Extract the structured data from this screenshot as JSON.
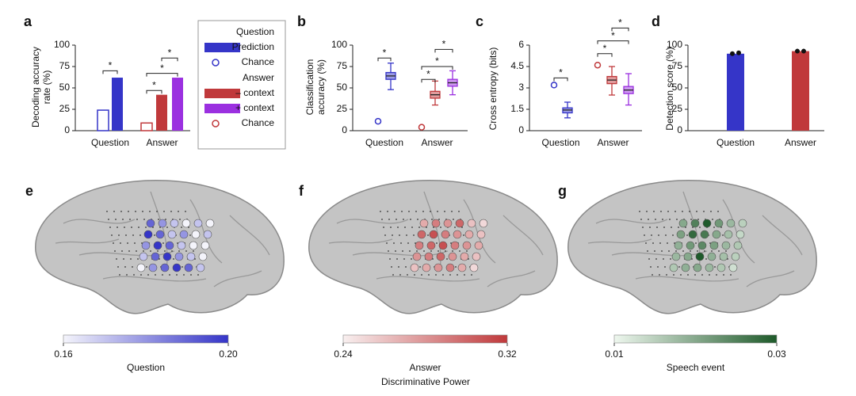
{
  "chart_data": [
    {
      "type": "bar",
      "label": "a",
      "ylabel": "Decoding accuracy rate (%)",
      "ylim": [
        0,
        100
      ],
      "yticks": [
        0,
        25,
        50,
        75,
        100
      ],
      "groups": [
        {
          "name": "Question",
          "series": [
            {
              "name": "Prediction",
              "color": "#3535c8",
              "filled": true,
              "value": 62
            },
            {
              "name": "Chance",
              "color": "#3535c8",
              "filled": false,
              "value": 24
            }
          ]
        },
        {
          "name": "Answer",
          "series": [
            {
              "name": "– context",
              "color": "#c0393b",
              "filled": true,
              "value": 42
            },
            {
              "name": "+ context",
              "color": "#9b30e0",
              "filled": true,
              "value": 62
            },
            {
              "name": "Chance",
              "color": "#c0393b",
              "filled": false,
              "value": 9
            }
          ]
        }
      ],
      "significance": [
        "*",
        "*",
        "*",
        "*"
      ]
    },
    {
      "type": "box",
      "label": "b",
      "ylabel": "Classification accuracy (%)",
      "ylim": [
        0,
        100
      ],
      "yticks": [
        0,
        25,
        50,
        75,
        100
      ],
      "groups": [
        {
          "name": "Question",
          "chance": 11,
          "chance_color": "#3535c8",
          "boxes": [
            {
              "color": "#3535c8",
              "min": 48,
              "q1": 60,
              "median": 64,
              "q3": 68,
              "max": 79
            }
          ]
        },
        {
          "name": "Answer",
          "chance": 4,
          "chance_color": "#c0393b",
          "boxes": [
            {
              "color": "#c0393b",
              "min": 30,
              "q1": 38,
              "median": 42,
              "q3": 46,
              "max": 58
            },
            {
              "color": "#9b30e0",
              "min": 42,
              "q1": 52,
              "median": 56,
              "q3": 60,
              "max": 70
            }
          ]
        }
      ],
      "significance": [
        "*",
        "*",
        "*",
        "*"
      ]
    },
    {
      "type": "box",
      "label": "c",
      "ylabel": "Cross entropy (bits)",
      "ylim": [
        0,
        6
      ],
      "yticks": [
        0,
        1.5,
        3,
        4.5,
        6
      ],
      "groups": [
        {
          "name": "Question",
          "chance": 3.2,
          "chance_color": "#3535c8",
          "boxes": [
            {
              "color": "#3535c8",
              "min": 0.9,
              "q1": 1.25,
              "median": 1.45,
              "q3": 1.6,
              "max": 2.0
            }
          ]
        },
        {
          "name": "Answer",
          "chance": 4.6,
          "chance_color": "#c0393b",
          "boxes": [
            {
              "color": "#c0393b",
              "min": 2.5,
              "q1": 3.3,
              "median": 3.55,
              "q3": 3.8,
              "max": 4.5
            },
            {
              "color": "#9b30e0",
              "min": 1.8,
              "q1": 2.6,
              "median": 2.85,
              "q3": 3.1,
              "max": 4.0
            }
          ]
        }
      ],
      "significance": [
        "*",
        "*",
        "*",
        "*"
      ]
    },
    {
      "type": "bar",
      "label": "d",
      "ylabel": "Detection score (%)",
      "ylim": [
        0,
        100
      ],
      "yticks": [
        0,
        25,
        50,
        75,
        100
      ],
      "categories": [
        "Question",
        "Answer"
      ],
      "values": [
        90,
        93
      ],
      "colors": [
        "#3535c8",
        "#c0393b"
      ],
      "points": [
        [
          90,
          91
        ],
        [
          93,
          93
        ]
      ]
    },
    {
      "type": "brain",
      "label": "e",
      "colorbar_label": "Question",
      "clim": [
        0.16,
        0.2
      ],
      "cticks": [
        0.16,
        {
          "value": 0.2,
          "label": "0.20"
        }
      ],
      "colormap": [
        "#f4f4fb",
        "#3535c8"
      ],
      "electrodes": [
        0.19,
        0.18,
        0.17,
        0.16,
        0.17,
        0.16,
        0.2,
        0.19,
        0.17,
        0.18,
        0.16,
        0.17,
        0.18,
        0.2,
        0.19,
        0.17,
        0.16,
        0.16,
        0.17,
        0.19,
        0.2,
        0.18,
        0.17,
        0.16,
        0.16,
        0.18,
        0.19,
        0.2,
        0.19,
        0.17
      ]
    },
    {
      "type": "brain",
      "label": "f",
      "colorbar_label": "Answer",
      "clim": [
        0.24,
        0.32
      ],
      "cticks": [
        0.24,
        0.32
      ],
      "colormap": [
        "#f8efef",
        "#c0393b"
      ],
      "electrodes": [
        0.27,
        0.29,
        0.28,
        0.3,
        0.26,
        0.25,
        0.3,
        0.31,
        0.29,
        0.28,
        0.27,
        0.26,
        0.29,
        0.3,
        0.31,
        0.29,
        0.28,
        0.27,
        0.28,
        0.29,
        0.3,
        0.28,
        0.27,
        0.26,
        0.26,
        0.27,
        0.28,
        0.29,
        0.27,
        0.25
      ]
    },
    {
      "type": "brain",
      "label": "g",
      "colorbar_label": "Speech event",
      "clim": [
        0.01,
        0.03
      ],
      "cticks": [
        0.01,
        0.03
      ],
      "colormap": [
        "#eef7ee",
        "#1e5a2a"
      ],
      "electrodes": [
        0.02,
        0.025,
        0.03,
        0.022,
        0.018,
        0.015,
        0.021,
        0.028,
        0.026,
        0.02,
        0.017,
        0.014,
        0.019,
        0.022,
        0.024,
        0.021,
        0.018,
        0.016,
        0.018,
        0.02,
        0.03,
        0.019,
        0.017,
        0.015,
        0.016,
        0.019,
        0.02,
        0.018,
        0.016,
        0.013
      ]
    }
  ],
  "caption": "Discriminative Power"
}
